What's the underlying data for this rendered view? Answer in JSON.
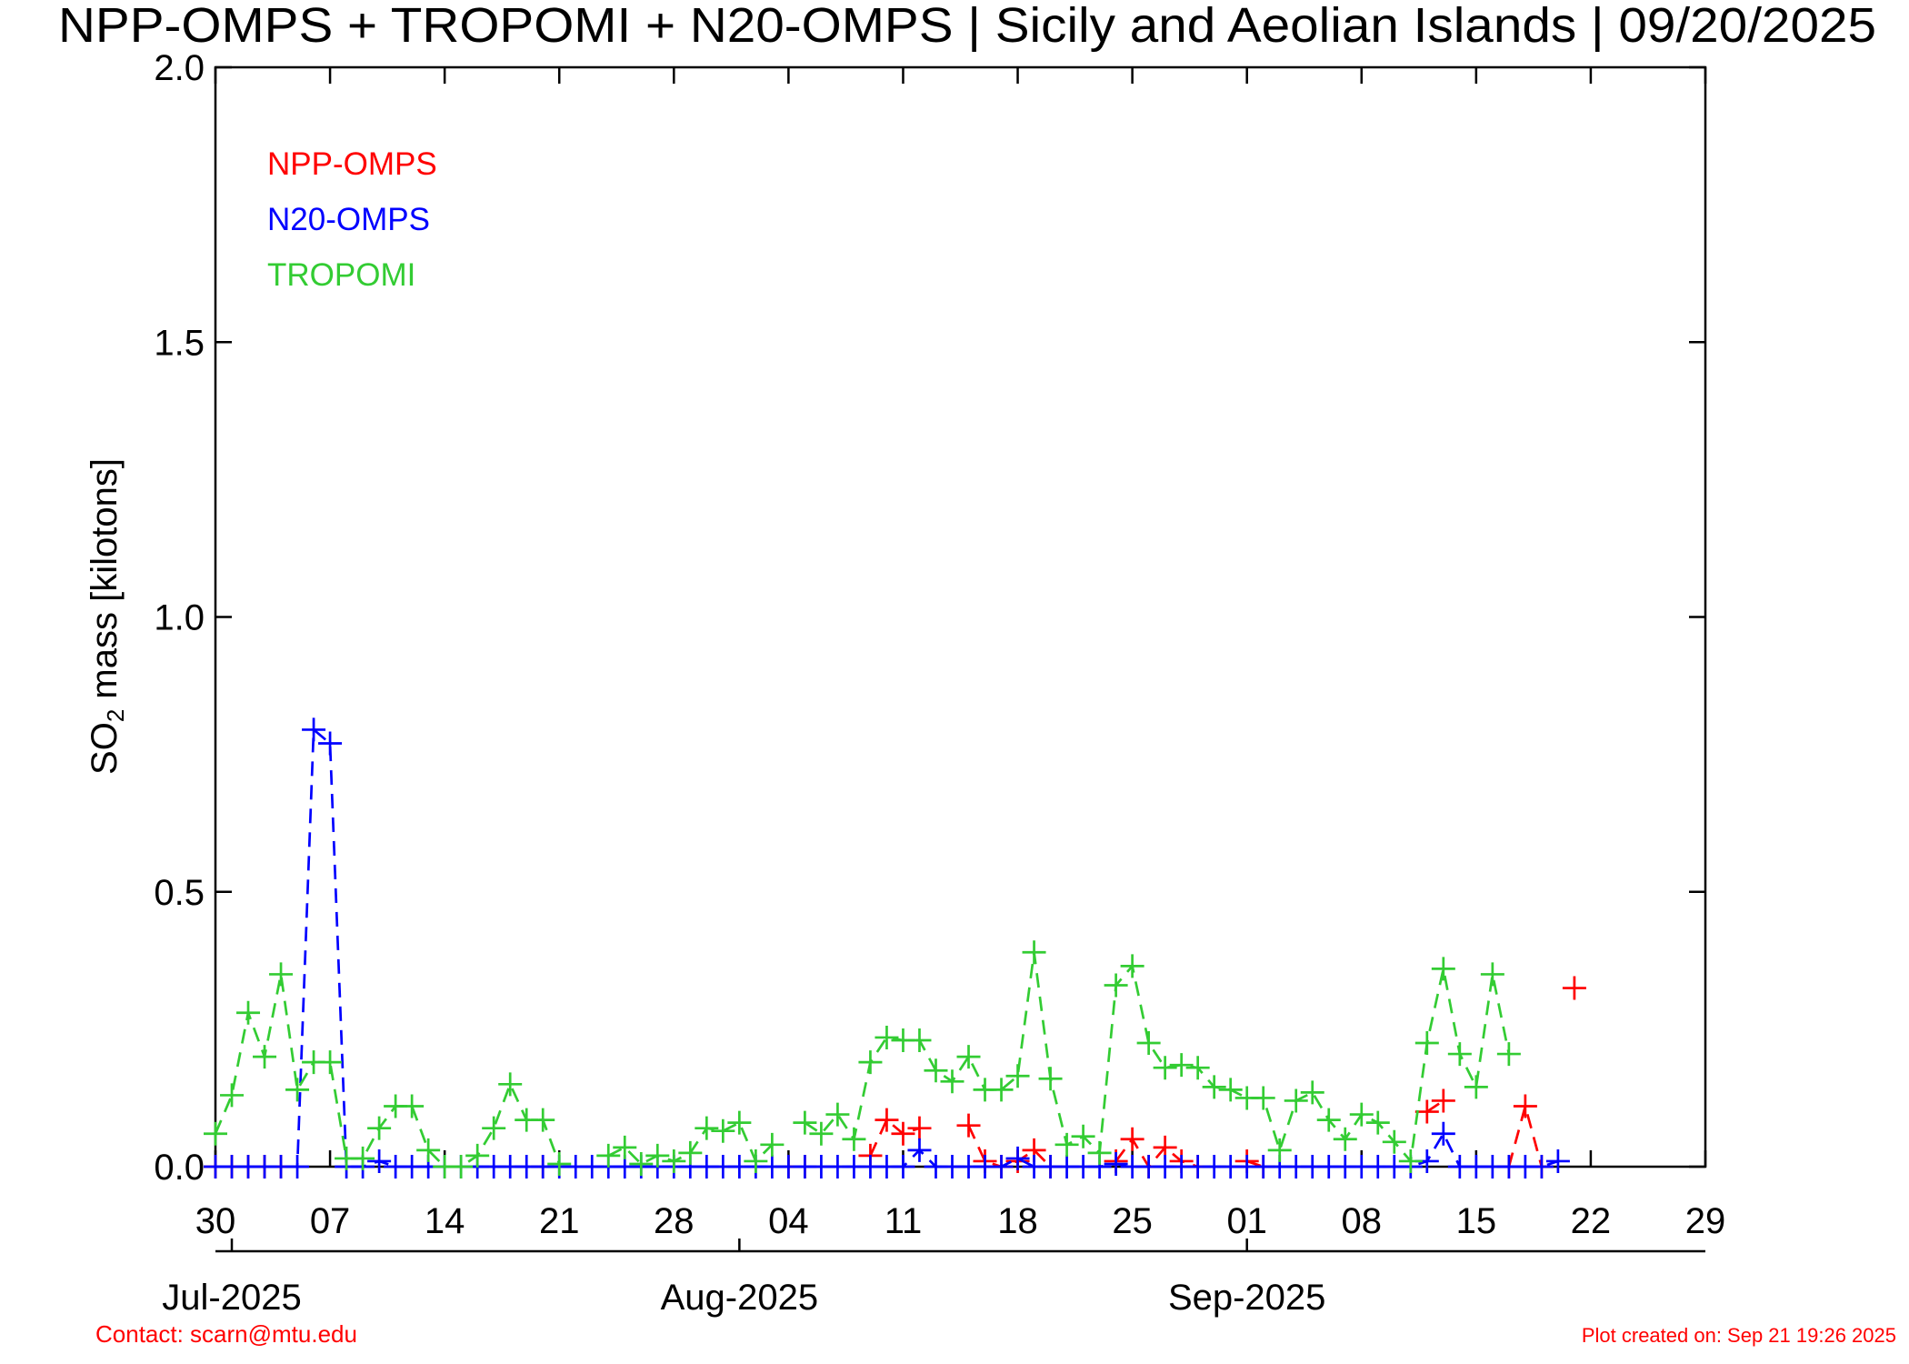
{
  "chart_data": {
    "type": "line",
    "title": "NPP-OMPS + TROPOMI + N20-OMPS | Sicily and Aeolian Islands | 09/20/2025",
    "ylabel": [
      "SO",
      "2",
      " mass [kilotons]"
    ],
    "x": [
      "2025-06-30",
      "2025-07-01",
      "2025-07-02",
      "2025-07-03",
      "2025-07-04",
      "2025-07-05",
      "2025-07-06",
      "2025-07-07",
      "2025-07-08",
      "2025-07-09",
      "2025-07-10",
      "2025-07-11",
      "2025-07-12",
      "2025-07-13",
      "2025-07-14",
      "2025-07-15",
      "2025-07-16",
      "2025-07-17",
      "2025-07-18",
      "2025-07-19",
      "2025-07-20",
      "2025-07-21",
      "2025-07-22",
      "2025-07-23",
      "2025-07-24",
      "2025-07-25",
      "2025-07-26",
      "2025-07-27",
      "2025-07-28",
      "2025-07-29",
      "2025-07-30",
      "2025-07-31",
      "2025-08-01",
      "2025-08-02",
      "2025-08-03",
      "2025-08-04",
      "2025-08-05",
      "2025-08-06",
      "2025-08-07",
      "2025-08-08",
      "2025-08-09",
      "2025-08-10",
      "2025-08-11",
      "2025-08-12",
      "2025-08-13",
      "2025-08-14",
      "2025-08-15",
      "2025-08-16",
      "2025-08-17",
      "2025-08-18",
      "2025-08-19",
      "2025-08-20",
      "2025-08-21",
      "2025-08-22",
      "2025-08-23",
      "2025-08-24",
      "2025-08-25",
      "2025-08-26",
      "2025-08-27",
      "2025-08-28",
      "2025-08-29",
      "2025-08-30",
      "2025-08-31",
      "2025-09-01",
      "2025-09-02",
      "2025-09-03",
      "2025-09-04",
      "2025-09-05",
      "2025-09-06",
      "2025-09-07",
      "2025-09-08",
      "2025-09-09",
      "2025-09-10",
      "2025-09-11",
      "2025-09-12",
      "2025-09-13",
      "2025-09-14",
      "2025-09-15",
      "2025-09-16",
      "2025-09-17",
      "2025-09-18",
      "2025-09-19",
      "2025-09-20",
      "2025-09-21"
    ],
    "series": [
      {
        "name": "NPP-OMPS",
        "color": "#ff0000",
        "values": [
          0,
          0,
          0,
          0,
          0,
          null,
          null,
          null,
          null,
          null,
          null,
          null,
          null,
          null,
          null,
          null,
          null,
          null,
          null,
          null,
          0,
          null,
          null,
          null,
          null,
          null,
          null,
          null,
          null,
          null,
          null,
          null,
          null,
          null,
          null,
          0,
          0,
          null,
          null,
          null,
          0.02,
          0.085,
          0.06,
          0.07,
          null,
          null,
          0.075,
          0.01,
          0,
          0.01,
          0.03,
          0,
          null,
          null,
          null,
          0.01,
          0.05,
          0,
          0.035,
          0.01,
          0,
          null,
          null,
          0.01,
          0,
          null,
          null,
          null,
          null,
          null,
          null,
          null,
          null,
          null,
          0.1,
          0.12,
          null,
          null,
          null,
          0,
          0.11,
          0,
          null,
          0.325
        ]
      },
      {
        "name": "N20-OMPS",
        "color": "#0000ff",
        "values": [
          0,
          0,
          0,
          0,
          0,
          0,
          0.795,
          0.77,
          0,
          0,
          0.01,
          0,
          0,
          0,
          0,
          0,
          0,
          0,
          0,
          0,
          0,
          0,
          0,
          0,
          0,
          0,
          0,
          0,
          0,
          0,
          0,
          0,
          0,
          0,
          0,
          0,
          0,
          0,
          0,
          0,
          0,
          0,
          0,
          0.03,
          0,
          0,
          0,
          0,
          0,
          0.015,
          0,
          0,
          0,
          0,
          0,
          0.005,
          0,
          0,
          0,
          0,
          0,
          0,
          0,
          0,
          0,
          0,
          0,
          0,
          0,
          0,
          0,
          0,
          0,
          0,
          0.01,
          0.06,
          0,
          0,
          0,
          0,
          0,
          0,
          0.01,
          null
        ]
      },
      {
        "name": "TROPOMI",
        "color": "#33cc33",
        "values": [
          0.06,
          0.13,
          0.28,
          0.2,
          0.35,
          0.14,
          0.19,
          0.19,
          0.015,
          0.015,
          0.07,
          0.11,
          0.11,
          0.03,
          0,
          0,
          0.02,
          0.07,
          0.15,
          0.085,
          0.085,
          0.005,
          null,
          null,
          0.02,
          0.035,
          0.005,
          0.02,
          0.01,
          0.025,
          0.07,
          0.065,
          0.08,
          0.01,
          0.04,
          null,
          0.08,
          0.06,
          0.095,
          0.05,
          0.19,
          0.235,
          0.23,
          0.23,
          0.175,
          0.155,
          0.2,
          0.14,
          0.14,
          0.165,
          0.39,
          0.16,
          0.04,
          0.055,
          0.025,
          0.33,
          0.365,
          0.225,
          0.18,
          0.185,
          0.18,
          0.145,
          0.14,
          0.125,
          0.125,
          0.03,
          0.12,
          0.135,
          0.085,
          0.05,
          0.095,
          0.08,
          0.045,
          0.01,
          0.225,
          0.36,
          0.205,
          0.145,
          0.35,
          0.205,
          null,
          null,
          null,
          null
        ]
      }
    ],
    "xlim": [
      "2025-06-30",
      "2025-09-29"
    ],
    "xticks": [
      {
        "value": "2025-06-30",
        "label": "30"
      },
      {
        "value": "2025-07-07",
        "label": "07"
      },
      {
        "value": "2025-07-14",
        "label": "14"
      },
      {
        "value": "2025-07-21",
        "label": "21"
      },
      {
        "value": "2025-07-28",
        "label": "28"
      },
      {
        "value": "2025-08-04",
        "label": "04"
      },
      {
        "value": "2025-08-11",
        "label": "11"
      },
      {
        "value": "2025-08-18",
        "label": "18"
      },
      {
        "value": "2025-08-25",
        "label": "25"
      },
      {
        "value": "2025-09-01",
        "label": "01"
      },
      {
        "value": "2025-09-08",
        "label": "08"
      },
      {
        "value": "2025-09-15",
        "label": "15"
      },
      {
        "value": "2025-09-22",
        "label": "22"
      },
      {
        "value": "2025-09-29",
        "label": "29"
      }
    ],
    "month_ticks": [
      {
        "value": "2025-07-01",
        "label": "Jul-2025"
      },
      {
        "value": "2025-08-01",
        "label": "Aug-2025"
      },
      {
        "value": "2025-09-01",
        "label": "Sep-2025"
      }
    ],
    "ylim": [
      0,
      2
    ],
    "yticks": [
      {
        "value": 0,
        "label": "0.0"
      },
      0.5,
      {
        "value": 1,
        "label": "1.0"
      },
      1.5,
      {
        "value": 2,
        "label": "2.0"
      }
    ],
    "legend": "upper left",
    "line_style": "dashed",
    "marker": "plus",
    "footer_left": "Contact: scarn@mtu.edu",
    "footer_right": "Plot created on: Sep 21 19:26 2025"
  }
}
